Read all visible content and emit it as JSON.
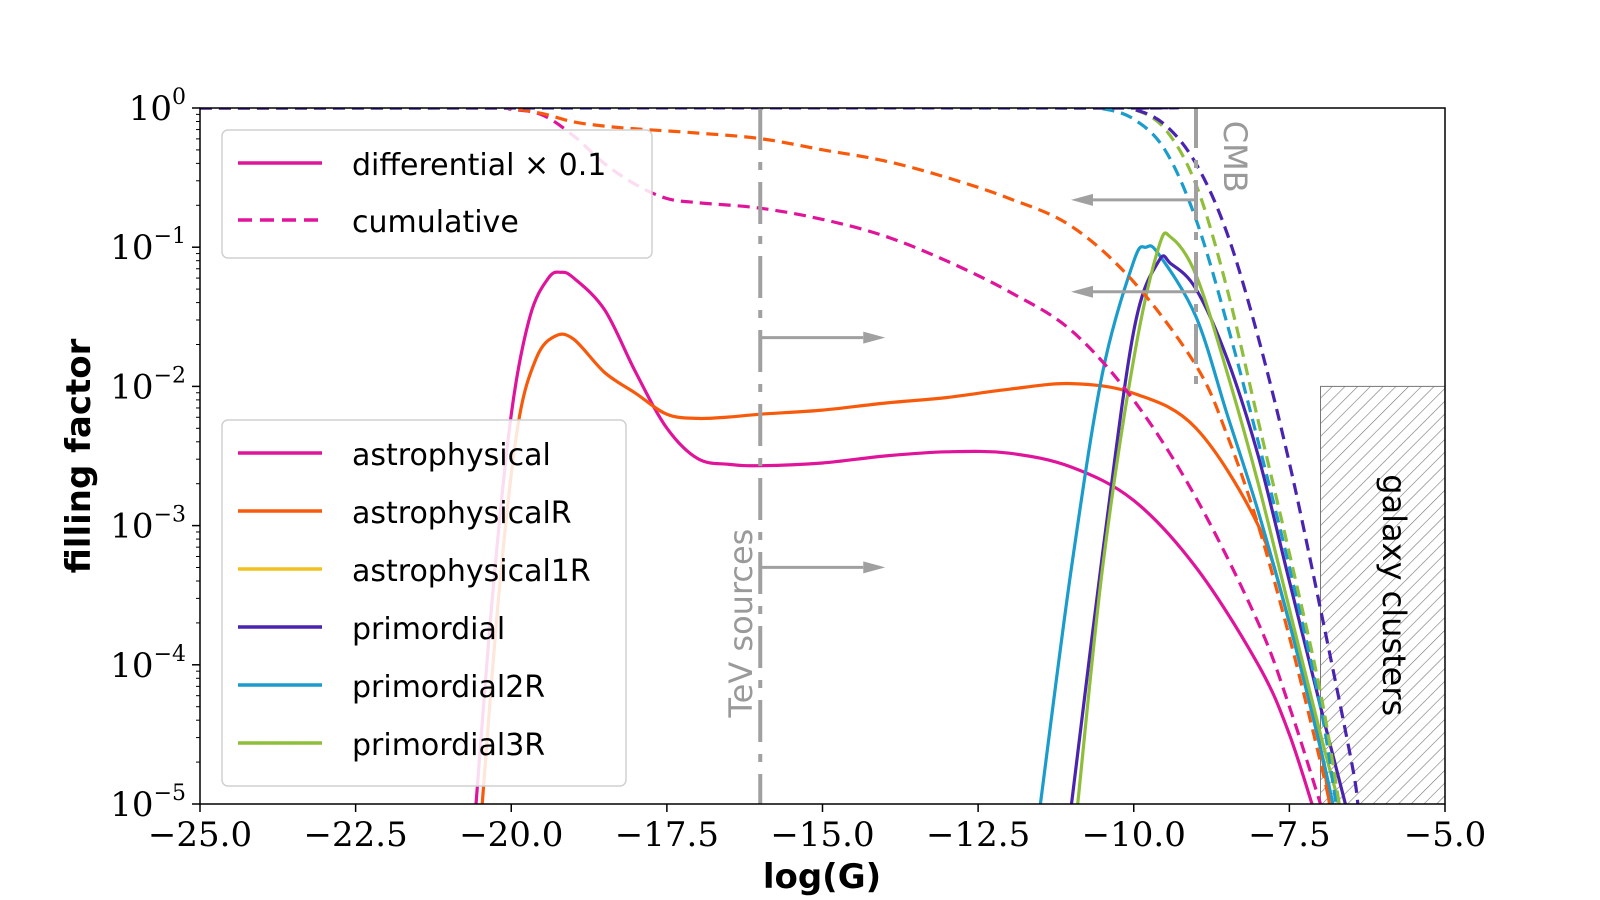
{
  "chart_data": {
    "type": "line",
    "title": "",
    "xlabel": "log(G)",
    "ylabel": "filling factor",
    "xlim": [
      -25.0,
      -5.0
    ],
    "ylim_log10": [
      -5,
      0
    ],
    "yscale": "log",
    "x_ticks": [
      -25.0,
      -22.5,
      -20.0,
      -17.5,
      -15.0,
      -12.5,
      -10.0,
      -7.5,
      -5.0
    ],
    "x_tick_labels": [
      "−25.0",
      "−22.5",
      "−20.0",
      "−17.5",
      "−15.0",
      "−12.5",
      "−10.0",
      "−7.5",
      "−5.0"
    ],
    "y_ticks": [
      {
        "base": "10",
        "exp": "0",
        "value": 0
      },
      {
        "base": "10",
        "exp": "−1",
        "value": -1
      },
      {
        "base": "10",
        "exp": "−2",
        "value": -2
      },
      {
        "base": "10",
        "exp": "−3",
        "value": -3
      },
      {
        "base": "10",
        "exp": "−4",
        "value": -4
      },
      {
        "base": "10",
        "exp": "−5",
        "value": -5
      }
    ],
    "style_legend": [
      {
        "label": "differential × 0.1",
        "color": "#e0149b",
        "dash": "solid"
      },
      {
        "label": "cumulative",
        "color": "#e0149b",
        "dash": "dashed"
      }
    ],
    "series_legend": [
      {
        "label": "astrophysical",
        "color": "#e0149b"
      },
      {
        "label": "astrophysicalR",
        "color": "#f85a0c"
      },
      {
        "label": "astrophysical1R",
        "color": "#f2c01f"
      },
      {
        "label": "primordial",
        "color": "#4a24b0"
      },
      {
        "label": "primordial2R",
        "color": "#1a9ccc"
      },
      {
        "label": "primordial3R",
        "color": "#8fbe3a"
      }
    ],
    "series": [
      {
        "name": "astrophysical differential",
        "color": "#e0149b",
        "dash": "solid",
        "points": [
          [
            -20.6,
            -5.2
          ],
          [
            -20.3,
            -3.5
          ],
          [
            -20.0,
            -2.2
          ],
          [
            -19.7,
            -1.5
          ],
          [
            -19.4,
            -1.22
          ],
          [
            -19.2,
            -1.18
          ],
          [
            -19.0,
            -1.22
          ],
          [
            -18.5,
            -1.45
          ],
          [
            -18.0,
            -1.9
          ],
          [
            -17.5,
            -2.3
          ],
          [
            -17.0,
            -2.52
          ],
          [
            -16.5,
            -2.56
          ],
          [
            -16.0,
            -2.57
          ],
          [
            -15.0,
            -2.55
          ],
          [
            -14.0,
            -2.5
          ],
          [
            -13.0,
            -2.47
          ],
          [
            -12.0,
            -2.48
          ],
          [
            -11.0,
            -2.58
          ],
          [
            -10.0,
            -2.82
          ],
          [
            -9.0,
            -3.3
          ],
          [
            -8.0,
            -4.0
          ],
          [
            -7.5,
            -4.5
          ],
          [
            -7.0,
            -5.2
          ]
        ]
      },
      {
        "name": "astrophysicalR differential",
        "color": "#f85a0c",
        "dash": "solid",
        "points": [
          [
            -20.5,
            -5.2
          ],
          [
            -20.2,
            -3.5
          ],
          [
            -19.9,
            -2.3
          ],
          [
            -19.6,
            -1.8
          ],
          [
            -19.3,
            -1.64
          ],
          [
            -19.0,
            -1.66
          ],
          [
            -18.5,
            -1.9
          ],
          [
            -18.0,
            -2.05
          ],
          [
            -17.5,
            -2.2
          ],
          [
            -17.0,
            -2.23
          ],
          [
            -16.5,
            -2.22
          ],
          [
            -16.0,
            -2.2
          ],
          [
            -15.0,
            -2.17
          ],
          [
            -14.0,
            -2.12
          ],
          [
            -13.0,
            -2.08
          ],
          [
            -12.0,
            -2.02
          ],
          [
            -11.0,
            -1.98
          ],
          [
            -10.0,
            -2.05
          ],
          [
            -9.0,
            -2.3
          ],
          [
            -8.0,
            -3.0
          ],
          [
            -7.5,
            -3.7
          ],
          [
            -7.0,
            -4.6
          ],
          [
            -6.8,
            -5.2
          ]
        ]
      },
      {
        "name": "primordial2R differential",
        "color": "#1a9ccc",
        "dash": "solid",
        "points": [
          [
            -11.5,
            -5.0
          ],
          [
            -11.0,
            -3.3
          ],
          [
            -10.5,
            -1.9
          ],
          [
            -10.0,
            -1.1
          ],
          [
            -9.8,
            -1.0
          ],
          [
            -9.6,
            -1.05
          ],
          [
            -9.0,
            -1.5
          ],
          [
            -8.5,
            -2.2
          ],
          [
            -8.0,
            -2.9
          ],
          [
            -7.5,
            -3.7
          ],
          [
            -7.0,
            -4.6
          ],
          [
            -6.8,
            -5.0
          ]
        ]
      },
      {
        "name": "primordial differential",
        "color": "#4a24b0",
        "dash": "solid",
        "points": [
          [
            -11.0,
            -5.0
          ],
          [
            -10.5,
            -3.2
          ],
          [
            -10.0,
            -1.6
          ],
          [
            -9.6,
            -1.1
          ],
          [
            -9.4,
            -1.12
          ],
          [
            -9.0,
            -1.3
          ],
          [
            -8.5,
            -1.8
          ],
          [
            -8.0,
            -2.5
          ],
          [
            -7.5,
            -3.4
          ],
          [
            -7.0,
            -4.3
          ],
          [
            -6.6,
            -5.0
          ]
        ]
      },
      {
        "name": "primordial3R differential",
        "color": "#8fbe3a",
        "dash": "solid",
        "points": [
          [
            -10.9,
            -5.0
          ],
          [
            -10.5,
            -3.3
          ],
          [
            -10.0,
            -1.8
          ],
          [
            -9.6,
            -1.0
          ],
          [
            -9.4,
            -0.93
          ],
          [
            -9.0,
            -1.2
          ],
          [
            -8.5,
            -1.9
          ],
          [
            -8.0,
            -2.7
          ],
          [
            -7.5,
            -3.6
          ],
          [
            -7.0,
            -4.5
          ],
          [
            -6.7,
            -5.0
          ]
        ]
      },
      {
        "name": "astrophysical cumulative",
        "color": "#e0149b",
        "dash": "dashed",
        "points": [
          [
            -25.0,
            0.0
          ],
          [
            -20.5,
            0.0
          ],
          [
            -20.0,
            -0.01
          ],
          [
            -19.5,
            -0.05
          ],
          [
            -19.0,
            -0.2
          ],
          [
            -18.5,
            -0.4
          ],
          [
            -18.0,
            -0.55
          ],
          [
            -17.5,
            -0.65
          ],
          [
            -17.0,
            -0.68
          ],
          [
            -16.0,
            -0.72
          ],
          [
            -15.0,
            -0.8
          ],
          [
            -14.0,
            -0.92
          ],
          [
            -13.0,
            -1.1
          ],
          [
            -12.0,
            -1.32
          ],
          [
            -11.0,
            -1.6
          ],
          [
            -10.0,
            -2.1
          ],
          [
            -9.0,
            -2.8
          ],
          [
            -8.0,
            -3.7
          ],
          [
            -7.5,
            -4.3
          ],
          [
            -7.0,
            -5.0
          ]
        ]
      },
      {
        "name": "astrophysicalR cumulative",
        "color": "#f85a0c",
        "dash": "dashed",
        "points": [
          [
            -25.0,
            0.0
          ],
          [
            -20.5,
            0.0
          ],
          [
            -20.0,
            -0.005
          ],
          [
            -19.5,
            -0.04
          ],
          [
            -19.0,
            -0.1
          ],
          [
            -18.5,
            -0.13
          ],
          [
            -18.0,
            -0.15
          ],
          [
            -17.0,
            -0.18
          ],
          [
            -16.0,
            -0.22
          ],
          [
            -15.0,
            -0.3
          ],
          [
            -14.0,
            -0.38
          ],
          [
            -13.0,
            -0.5
          ],
          [
            -12.0,
            -0.65
          ],
          [
            -11.0,
            -0.85
          ],
          [
            -10.0,
            -1.25
          ],
          [
            -9.0,
            -1.85
          ],
          [
            -8.5,
            -2.35
          ],
          [
            -8.0,
            -3.0
          ],
          [
            -7.5,
            -3.8
          ],
          [
            -7.0,
            -4.7
          ],
          [
            -6.85,
            -5.0
          ]
        ]
      },
      {
        "name": "primordial2R cumulative",
        "color": "#1a9ccc",
        "dash": "dashed",
        "points": [
          [
            -25.0,
            0.0
          ],
          [
            -11.0,
            0.0
          ],
          [
            -10.5,
            -0.005
          ],
          [
            -10.0,
            -0.08
          ],
          [
            -9.5,
            -0.3
          ],
          [
            -9.0,
            -0.8
          ],
          [
            -8.5,
            -1.55
          ],
          [
            -8.0,
            -2.4
          ],
          [
            -7.5,
            -3.3
          ],
          [
            -7.0,
            -4.3
          ],
          [
            -6.75,
            -5.0
          ]
        ]
      },
      {
        "name": "primordial3R cumulative",
        "color": "#8fbe3a",
        "dash": "dashed",
        "points": [
          [
            -25.0,
            0.0
          ],
          [
            -10.5,
            0.0
          ],
          [
            -10.0,
            -0.01
          ],
          [
            -9.5,
            -0.15
          ],
          [
            -9.0,
            -0.55
          ],
          [
            -8.5,
            -1.3
          ],
          [
            -8.0,
            -2.25
          ],
          [
            -7.5,
            -3.2
          ],
          [
            -7.0,
            -4.2
          ],
          [
            -6.7,
            -5.0
          ]
        ]
      },
      {
        "name": "primordial cumulative",
        "color": "#4a24b0",
        "dash": "dashed",
        "points": [
          [
            -25.0,
            0.0
          ],
          [
            -10.5,
            0.0
          ],
          [
            -10.0,
            -0.01
          ],
          [
            -9.5,
            -0.12
          ],
          [
            -9.0,
            -0.4
          ],
          [
            -8.5,
            -0.9
          ],
          [
            -8.0,
            -1.65
          ],
          [
            -7.5,
            -2.55
          ],
          [
            -7.0,
            -3.6
          ],
          [
            -6.5,
            -4.7
          ],
          [
            -6.4,
            -5.0
          ]
        ]
      }
    ],
    "annotations": {
      "tev": {
        "label": "TeV sources",
        "x": -16.0,
        "arrow_y_log10": [
          -1.65,
          -3.3
        ]
      },
      "cmb": {
        "label": "CMB",
        "x": -9.0,
        "y_range_log10": [
          0.0,
          -2.0
        ],
        "arrow_y_log10": [
          -0.66,
          -1.32
        ]
      },
      "clusters": {
        "label": "galaxy clusters",
        "x_range": [
          -7.0,
          -5.0
        ],
        "y_top_log10": -2.0
      }
    }
  }
}
